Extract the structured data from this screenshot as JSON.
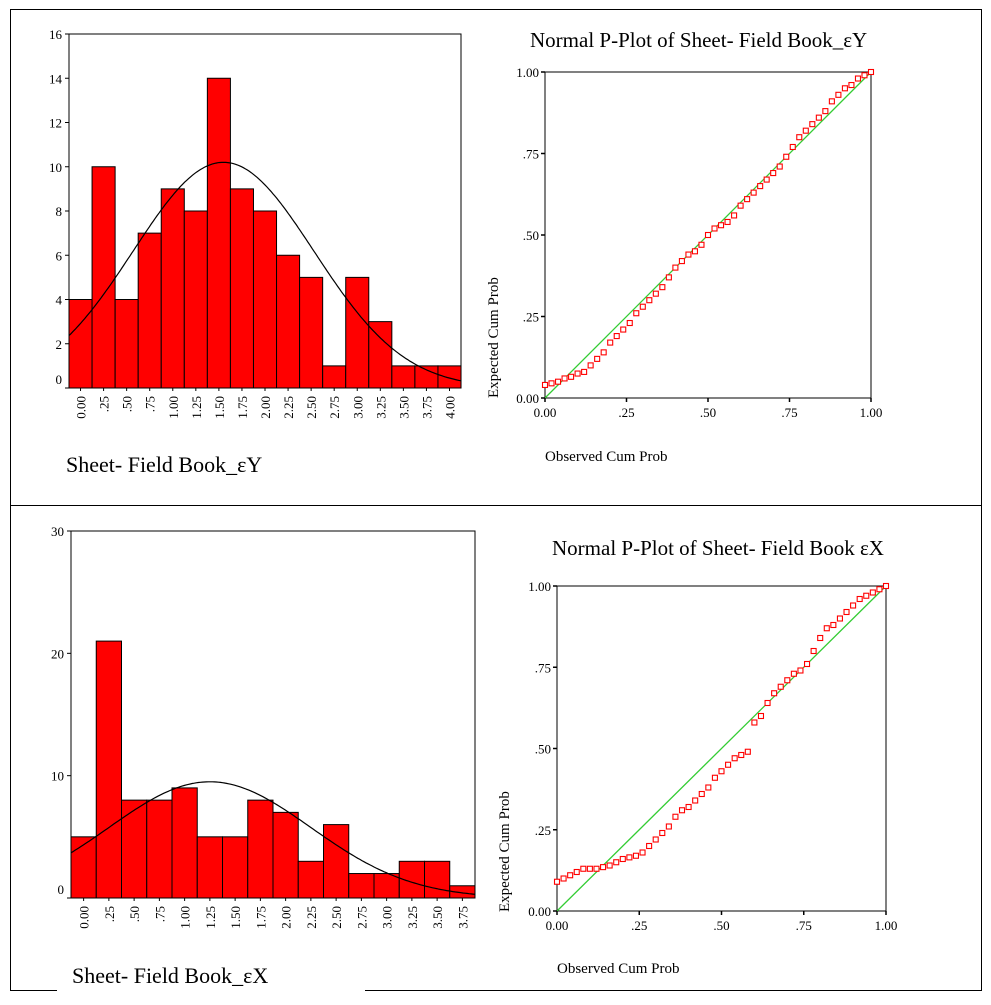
{
  "chart_data": [
    {
      "id": "histY",
      "type": "bar",
      "subtype": "histogram-with-normal-curve",
      "title": "",
      "xlabel": "Sheet- Field Book_εY",
      "ylabel": "",
      "ylim": [
        0,
        16
      ],
      "yticks": [
        "0",
        "2",
        "4",
        "6",
        "8",
        "10",
        "12",
        "14",
        "16"
      ],
      "categories": [
        "0.00",
        ".25",
        ".50",
        ".75",
        "1.00",
        "1.25",
        "1.50",
        "1.75",
        "2.00",
        "2.25",
        "2.50",
        "2.75",
        "3.00",
        "3.25",
        "3.50",
        "3.75",
        "4.00"
      ],
      "values": [
        4,
        10,
        4,
        7,
        9,
        8,
        14,
        9,
        8,
        6,
        5,
        1,
        5,
        3,
        1,
        1,
        1
      ],
      "normal_curve": {
        "mean": 1.55,
        "sd": 0.98,
        "peak": 10.2
      },
      "bar_color": "#ff0000"
    },
    {
      "id": "ppY",
      "type": "scatter",
      "subtype": "normal-p-plot",
      "title": "Normal P-Plot of Sheet- Field Book_εY",
      "xlabel": "Observed Cum Prob",
      "ylabel": "Expected Cum Prob",
      "xlim": [
        0,
        1
      ],
      "ylim": [
        0,
        1
      ],
      "xticks": [
        "0.00",
        ".25",
        ".50",
        ".75",
        "1.00"
      ],
      "yticks": [
        "0.00",
        ".25",
        ".50",
        ".75",
        "1.00"
      ],
      "reference_line": [
        [
          0,
          0
        ],
        [
          1,
          1
        ]
      ],
      "points": [
        [
          0.0,
          0.04
        ],
        [
          0.02,
          0.045
        ],
        [
          0.04,
          0.05
        ],
        [
          0.06,
          0.06
        ],
        [
          0.08,
          0.065
        ],
        [
          0.1,
          0.075
        ],
        [
          0.12,
          0.08
        ],
        [
          0.14,
          0.1
        ],
        [
          0.16,
          0.12
        ],
        [
          0.18,
          0.14
        ],
        [
          0.2,
          0.17
        ],
        [
          0.22,
          0.19
        ],
        [
          0.24,
          0.21
        ],
        [
          0.26,
          0.23
        ],
        [
          0.28,
          0.26
        ],
        [
          0.3,
          0.28
        ],
        [
          0.32,
          0.3
        ],
        [
          0.34,
          0.32
        ],
        [
          0.36,
          0.34
        ],
        [
          0.38,
          0.37
        ],
        [
          0.4,
          0.4
        ],
        [
          0.42,
          0.42
        ],
        [
          0.44,
          0.44
        ],
        [
          0.46,
          0.45
        ],
        [
          0.48,
          0.47
        ],
        [
          0.5,
          0.5
        ],
        [
          0.52,
          0.52
        ],
        [
          0.54,
          0.53
        ],
        [
          0.56,
          0.54
        ],
        [
          0.58,
          0.56
        ],
        [
          0.6,
          0.59
        ],
        [
          0.62,
          0.61
        ],
        [
          0.64,
          0.63
        ],
        [
          0.66,
          0.65
        ],
        [
          0.68,
          0.67
        ],
        [
          0.7,
          0.69
        ],
        [
          0.72,
          0.71
        ],
        [
          0.74,
          0.74
        ],
        [
          0.76,
          0.77
        ],
        [
          0.78,
          0.8
        ],
        [
          0.8,
          0.82
        ],
        [
          0.82,
          0.84
        ],
        [
          0.84,
          0.86
        ],
        [
          0.86,
          0.88
        ],
        [
          0.88,
          0.91
        ],
        [
          0.9,
          0.93
        ],
        [
          0.92,
          0.95
        ],
        [
          0.94,
          0.96
        ],
        [
          0.96,
          0.98
        ],
        [
          0.98,
          0.99
        ],
        [
          1.0,
          1.0
        ]
      ],
      "marker_color": "#ff0000",
      "line_color": "#33cc33"
    },
    {
      "id": "histX",
      "type": "bar",
      "subtype": "histogram-with-normal-curve",
      "title": "",
      "xlabel": "Sheet- Field Book_εX",
      "ylabel": "",
      "ylim": [
        0,
        30
      ],
      "yticks": [
        "0",
        "10",
        "20",
        "30"
      ],
      "categories": [
        "0.00",
        ".25",
        ".50",
        ".75",
        "1.00",
        "1.25",
        "1.50",
        "1.75",
        "2.00",
        "2.25",
        "2.50",
        "2.75",
        "3.00",
        "3.25",
        "3.50",
        "3.75"
      ],
      "values": [
        5,
        21,
        8,
        8,
        9,
        5,
        5,
        8,
        7,
        3,
        6,
        2,
        2,
        3,
        3,
        1
      ],
      "normal_curve": {
        "mean": 1.25,
        "sd": 1.0,
        "peak": 9.5
      },
      "bar_color": "#ff0000"
    },
    {
      "id": "ppX",
      "type": "scatter",
      "subtype": "normal-p-plot",
      "title": "Normal P-Plot of Sheet- Field Book  εX",
      "xlabel": "Observed Cum Prob",
      "ylabel": "Expected Cum Prob",
      "xlim": [
        0,
        1
      ],
      "ylim": [
        0,
        1
      ],
      "xticks": [
        "0.00",
        ".25",
        ".50",
        ".75",
        "1.00"
      ],
      "yticks": [
        "0.00",
        ".25",
        ".50",
        ".75",
        "1.00"
      ],
      "reference_line": [
        [
          0,
          0
        ],
        [
          1,
          1
        ]
      ],
      "points": [
        [
          0.0,
          0.09
        ],
        [
          0.02,
          0.1
        ],
        [
          0.04,
          0.11
        ],
        [
          0.06,
          0.12
        ],
        [
          0.08,
          0.13
        ],
        [
          0.1,
          0.13
        ],
        [
          0.12,
          0.13
        ],
        [
          0.14,
          0.135
        ],
        [
          0.16,
          0.14
        ],
        [
          0.18,
          0.15
        ],
        [
          0.2,
          0.16
        ],
        [
          0.22,
          0.165
        ],
        [
          0.24,
          0.17
        ],
        [
          0.26,
          0.18
        ],
        [
          0.28,
          0.2
        ],
        [
          0.3,
          0.22
        ],
        [
          0.32,
          0.24
        ],
        [
          0.34,
          0.26
        ],
        [
          0.36,
          0.29
        ],
        [
          0.38,
          0.31
        ],
        [
          0.4,
          0.32
        ],
        [
          0.42,
          0.34
        ],
        [
          0.44,
          0.36
        ],
        [
          0.46,
          0.38
        ],
        [
          0.48,
          0.41
        ],
        [
          0.5,
          0.43
        ],
        [
          0.52,
          0.45
        ],
        [
          0.54,
          0.47
        ],
        [
          0.56,
          0.48
        ],
        [
          0.58,
          0.49
        ],
        [
          0.6,
          0.58
        ],
        [
          0.62,
          0.6
        ],
        [
          0.64,
          0.64
        ],
        [
          0.66,
          0.67
        ],
        [
          0.68,
          0.69
        ],
        [
          0.7,
          0.71
        ],
        [
          0.72,
          0.73
        ],
        [
          0.74,
          0.74
        ],
        [
          0.76,
          0.76
        ],
        [
          0.78,
          0.8
        ],
        [
          0.8,
          0.84
        ],
        [
          0.82,
          0.87
        ],
        [
          0.84,
          0.88
        ],
        [
          0.86,
          0.9
        ],
        [
          0.88,
          0.92
        ],
        [
          0.9,
          0.94
        ],
        [
          0.92,
          0.96
        ],
        [
          0.94,
          0.97
        ],
        [
          0.96,
          0.98
        ],
        [
          0.98,
          0.99
        ],
        [
          1.0,
          1.0
        ]
      ],
      "marker_color": "#ff0000",
      "line_color": "#33cc33"
    }
  ]
}
